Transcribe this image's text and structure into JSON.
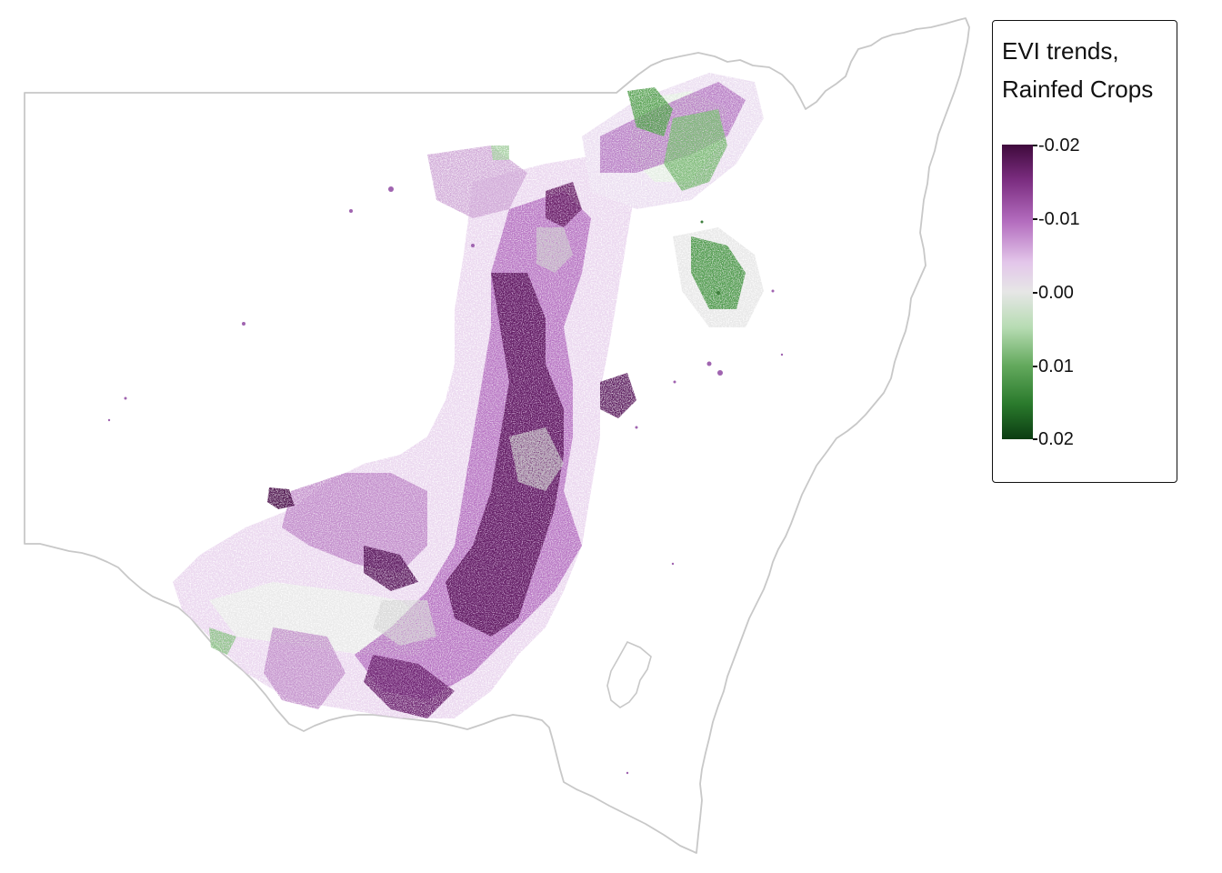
{
  "map": {
    "region": "New South Wales",
    "variable": "EVI trends",
    "land_use": "Rainfed Crops",
    "colors": {
      "boundary": "#c8c8c8",
      "background": "#ffffff"
    }
  },
  "legend": {
    "title_line1": "EVI trends,",
    "title_line2": "Rainfed Crops",
    "ticks": [
      "-0.02",
      "-0.01",
      "0.00",
      "0.01",
      "0.02"
    ],
    "range": [
      -0.02,
      0.02
    ],
    "palette": [
      "#3f0a3c",
      "#7b2d80",
      "#b36cbe",
      "#e3c6ea",
      "#e6e6e6",
      "#b7dcb3",
      "#63a95d",
      "#2a7a2c",
      "#0b3d12"
    ]
  }
}
